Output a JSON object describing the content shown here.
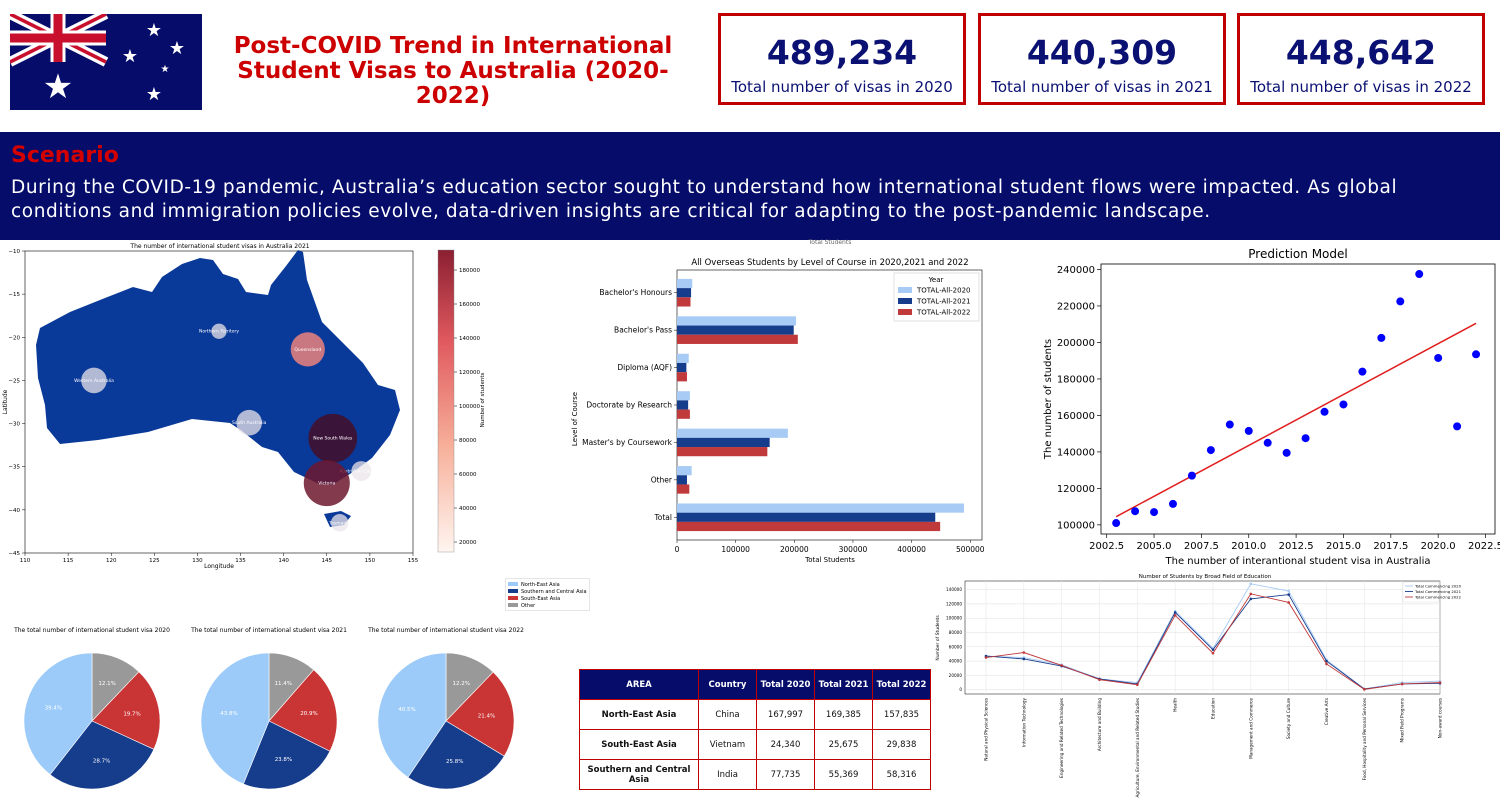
{
  "header": {
    "title_line1": "Post-COVID Trend in International",
    "title_line2": "Student Visas to Australia (2020-2022)"
  },
  "kpis": [
    {
      "value": "489,234",
      "label": "Total number of visas in 2020"
    },
    {
      "value": "440,309",
      "label": "Total number of visas in 2021"
    },
    {
      "value": "448,642",
      "label": "Total number of visas in 2022"
    }
  ],
  "scenario": {
    "heading": "Scenario",
    "text": "During the COVID-19 pandemic, Australia’s education sector sought to understand how international student flows were impacted. As global conditions and immigration policies evolve, data-driven insights are critical for adapting to the post-pandemic landscape."
  },
  "colors": {
    "navy": "#050c6a",
    "red": "#c00000",
    "light_blue": "#a7cbf4",
    "dark_blue": "#163c8c",
    "red_series": "#c0393b",
    "grey": "#999999"
  },
  "map": {
    "title": "The number of international student visas in Australia 2021",
    "xlabel": "Longitude",
    "ylabel": "Latitude",
    "colorbar_label": "Number of students",
    "xticks": [
      "110",
      "115",
      "120",
      "125",
      "130",
      "135",
      "140",
      "145",
      "150",
      "155"
    ],
    "yticks": [
      "−10",
      "−15",
      "−20",
      "−25",
      "−30",
      "−35",
      "−40",
      "−45"
    ],
    "cticks": [
      "180000",
      "160000",
      "140000",
      "120000",
      "100000",
      "80000",
      "60000",
      "40000",
      "20000"
    ],
    "states": [
      {
        "name": "Northern Territory"
      },
      {
        "name": "Queensland"
      },
      {
        "name": "Western Australia"
      },
      {
        "name": "South Australia"
      },
      {
        "name": "New South Wales"
      },
      {
        "name": "Australian Capital T"
      },
      {
        "name": "Victoria"
      },
      {
        "name": "Tasmania"
      }
    ]
  },
  "bar_cutoff_label": "Total Students",
  "pie_legend": [
    "North-East Asia",
    "Southern and Central Asia",
    "South-East Asia",
    "Other"
  ],
  "area_table": {
    "headers": [
      "AREA",
      "Country",
      "Total 2020",
      "Total 2021",
      "Total 2022"
    ],
    "rows": [
      [
        "North-East Asia",
        "China",
        "167,997",
        "169,385",
        "157,835"
      ],
      [
        "South-East Asia",
        "Vietnam",
        "24,340",
        "25,675",
        "29,838"
      ],
      [
        "Southern and Central Asia",
        "India",
        "77,735",
        "55,369",
        "58,316"
      ]
    ]
  },
  "chart_data": [
    {
      "type": "scatter",
      "title": "The number of international student visas in Australia 2021",
      "xlabel": "Longitude",
      "ylabel": "Latitude",
      "xlim": [
        110,
        155
      ],
      "ylim": [
        -45,
        -10
      ],
      "points": [
        {
          "label": "Northern Territory",
          "lon": 132.5,
          "lat": -19.3,
          "value": 3500
        },
        {
          "label": "Queensland",
          "lon": 142.8,
          "lat": -21.4,
          "value": 72000
        },
        {
          "label": "Western Australia",
          "lon": 118.0,
          "lat": -25.0,
          "value": 30000
        },
        {
          "label": "South Australia",
          "lon": 136.0,
          "lat": -29.9,
          "value": 30000
        },
        {
          "label": "New South Wales",
          "lon": 145.7,
          "lat": -31.7,
          "value": 185000
        },
        {
          "label": "Australian Capital T",
          "lon": 149.0,
          "lat": -35.5,
          "value": 12000
        },
        {
          "label": "Victoria",
          "lon": 145.0,
          "lat": -36.9,
          "value": 160000
        },
        {
          "label": "Tasmania",
          "lon": 146.5,
          "lat": -41.5,
          "value": 7000
        }
      ]
    },
    {
      "type": "bar",
      "title": "All Overseas Students by Level of Course in 2020,2021 and 2022",
      "xlabel": "Total Students",
      "ylabel": "Level of Course",
      "legend_title": "Year",
      "categories": [
        "Bachelor's Honours",
        "Bachelor's Pass",
        "Diploma (AQF)",
        "Doctorate by Research",
        "Master's by Coursework",
        "Other",
        "Total"
      ],
      "xticks": [
        "0",
        "100000",
        "200000",
        "300000",
        "400000",
        "500000"
      ],
      "xlim": [
        0,
        520000
      ],
      "series": [
        {
          "name": "TOTAL-All-2020",
          "color": "#a7cbf4",
          "values": [
            26000,
            203000,
            20000,
            22000,
            189000,
            25000,
            489234
          ]
        },
        {
          "name": "TOTAL-All-2021",
          "color": "#163c8c",
          "values": [
            24000,
            199000,
            16000,
            19000,
            158000,
            17000,
            440309
          ]
        },
        {
          "name": "TOTAL-All-2022",
          "color": "#c0393b",
          "values": [
            23000,
            206000,
            17000,
            22000,
            154000,
            21000,
            448642
          ]
        }
      ]
    },
    {
      "type": "scatter",
      "title": "Prediction Model",
      "xlabel": "The number of interantional student visa in Australia",
      "ylabel": "The number of students",
      "xlim": [
        2002.2,
        2023.0
      ],
      "ylim": [
        95000,
        243000
      ],
      "xticks": [
        "2002.5",
        "2005.0",
        "2007.5",
        "2010.0",
        "2012.5",
        "2015.0",
        "2017.5",
        "2020.0",
        "2022.5"
      ],
      "yticks": [
        "100000",
        "120000",
        "140000",
        "160000",
        "180000",
        "200000",
        "220000",
        "240000"
      ],
      "x": [
        2003,
        2004,
        2005,
        2006,
        2007,
        2008,
        2009,
        2010,
        2011,
        2012,
        2013,
        2014,
        2015,
        2016,
        2017,
        2018,
        2019,
        2020,
        2021,
        2022
      ],
      "y": [
        101000,
        107500,
        107000,
        111500,
        127000,
        141000,
        155000,
        151500,
        145000,
        139500,
        147500,
        162000,
        166000,
        184000,
        202500,
        222500,
        237500,
        191500,
        154000,
        193500
      ],
      "trend": [
        [
          2003,
          104500
        ],
        [
          2022,
          210500
        ]
      ]
    },
    {
      "type": "line",
      "title": "Number of Students by Broad Field of Education",
      "ylabel": "Number of Students",
      "ylim": [
        -6000,
        152000
      ],
      "yticks": [
        "0",
        "20000",
        "40000",
        "60000",
        "80000",
        "100000",
        "120000",
        "140000"
      ],
      "categories": [
        "Natural and Physical Sciences",
        "Information Technology",
        "Engineering and Related Technologies",
        "Architecture and Building",
        "Agriculture, Environmental and Related Studies",
        "Health",
        "Education",
        "Management and Commerce",
        "Society and Culture",
        "Creative Arts",
        "Food, Hospitality and Personal Services",
        "Mixed Field Programs",
        "Non-award courses"
      ],
      "series": [
        {
          "name": "Total Commencing 2020",
          "color": "#a7cbf4",
          "values": [
            47000,
            45000,
            35000,
            15000,
            10000,
            110000,
            58000,
            148000,
            138000,
            42000,
            1000,
            10000,
            12000
          ]
        },
        {
          "name": "Total Commencing 2021",
          "color": "#163c8c",
          "values": [
            47000,
            43000,
            33000,
            15000,
            8000,
            108000,
            56000,
            127000,
            133000,
            40000,
            1000,
            8000,
            9000
          ]
        },
        {
          "name": "Total Commencing 2022",
          "color": "#c0393b",
          "values": [
            45000,
            52000,
            34000,
            14000,
            7000,
            104000,
            51000,
            134000,
            122000,
            36000,
            500,
            8000,
            10000
          ]
        }
      ]
    },
    {
      "type": "pie",
      "title": "The total number of international student visa 2020",
      "labels": [
        "North-East Asia",
        "Southern and Central Asia",
        "South-East Asia",
        "Other"
      ],
      "display": [
        "39.4%",
        "28.7%",
        "19.7%",
        "12.1%"
      ],
      "values": [
        39.4,
        28.7,
        19.7,
        12.1
      ]
    },
    {
      "type": "pie",
      "title": "The total number of international student visa 2021",
      "labels": [
        "North-East Asia",
        "Southern and Central Asia",
        "South-East Asia",
        "Other"
      ],
      "display": [
        "43.8%",
        "23.8%",
        "20.9%",
        "11.4%"
      ],
      "values": [
        43.8,
        23.8,
        20.9,
        11.4
      ]
    },
    {
      "type": "pie",
      "title": "The total number of international student visa 2022",
      "labels": [
        "North-East Asia",
        "Southern and Central Asia",
        "South-East Asia",
        "Other"
      ],
      "display": [
        "40.5%",
        "25.8%",
        "21.4%",
        "12.2%"
      ],
      "values": [
        40.5,
        25.8,
        21.4,
        12.2
      ]
    }
  ]
}
